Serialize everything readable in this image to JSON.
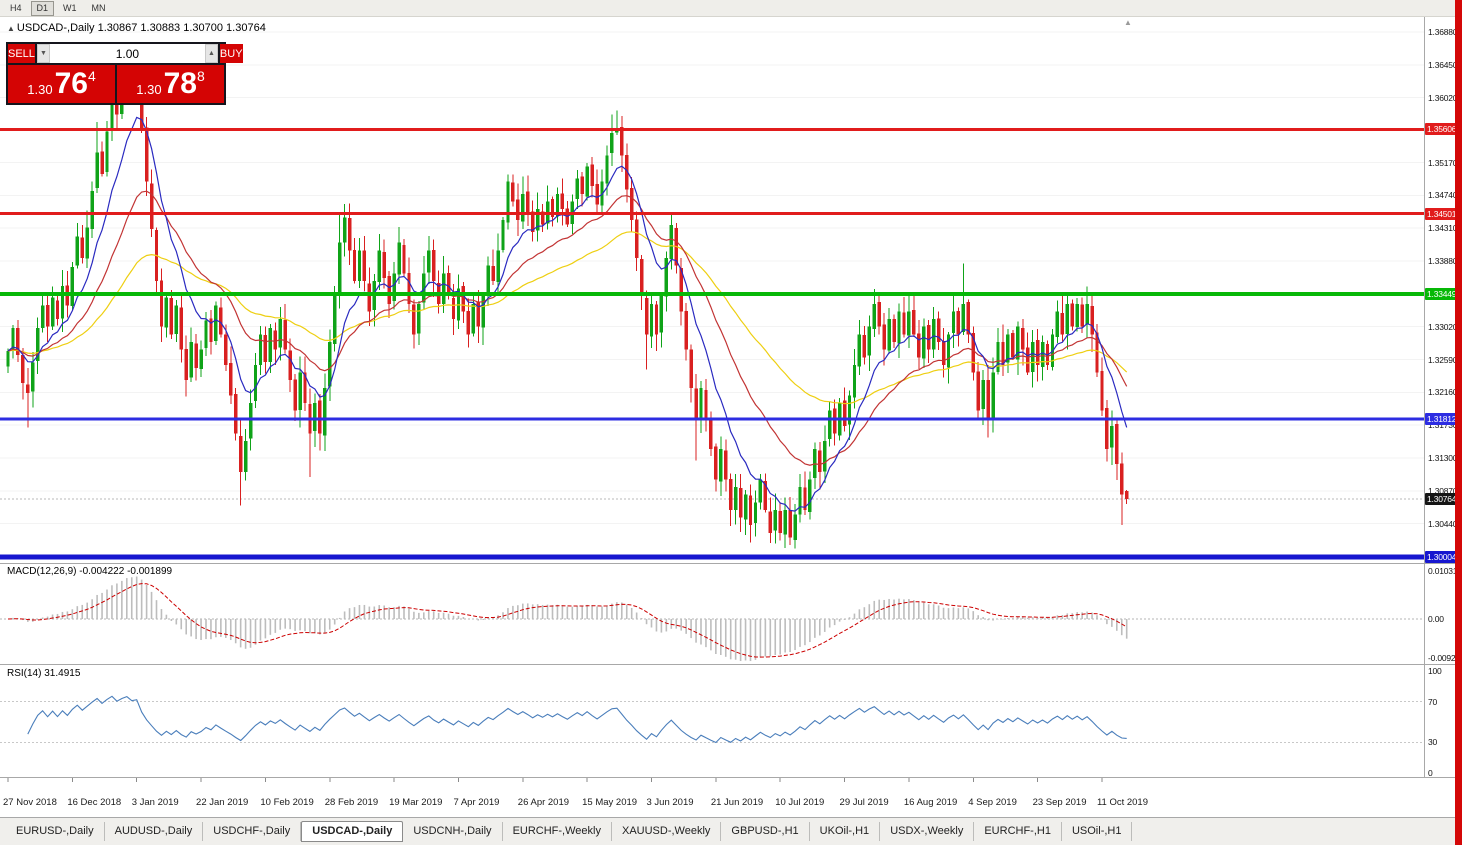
{
  "toolbar": {
    "timeframes": [
      "H4",
      "D1",
      "W1",
      "MN"
    ],
    "active": "D1"
  },
  "chart_header": {
    "marker": "▲",
    "title": "USDCAD-,Daily  1.30867 1.30883 1.30700 1.30764"
  },
  "icons": {
    "scroll_marker": "▲",
    "spin_down": "▼",
    "spin_up": "▲"
  },
  "trade_panel": {
    "sell_label": "SELL",
    "buy_label": "BUY",
    "volume": "1.00",
    "sell_price": {
      "prefix": "1.30",
      "big": "76",
      "sup": "4"
    },
    "buy_price": {
      "prefix": "1.30",
      "big": "78",
      "sup": "8"
    }
  },
  "price_scale": {
    "ticks": [
      "1.36880",
      "1.36450",
      "1.36020",
      "1.35170",
      "1.34740",
      "1.34310",
      "1.33880",
      "1.33020",
      "1.32590",
      "1.32160",
      "1.31730",
      "1.31300",
      "1.30870",
      "1.30440"
    ]
  },
  "macd_panel": {
    "label": "MACD(12,26,9) -0.004222 -0.001899",
    "scale_max": "0.010311",
    "scale_mid": "0.00",
    "scale_min": "-0.009203"
  },
  "rsi_panel": {
    "label": "RSI(14) 31.4915",
    "ticks": [
      "100",
      "70",
      "30",
      "0"
    ]
  },
  "x_axis": {
    "dates": [
      "27 Nov 2018",
      "16 Dec 2018",
      "3 Jan 2019",
      "22 Jan 2019",
      "10 Feb 2019",
      "28 Feb 2019",
      "19 Mar 2019",
      "7 Apr 2019",
      "26 Apr 2019",
      "15 May 2019",
      "3 Jun 2019",
      "21 Jun 2019",
      "10 Jul 2019",
      "29 Jul 2019",
      "16 Aug 2019",
      "4 Sep 2019",
      "23 Sep 2019",
      "11 Oct 2019"
    ]
  },
  "tabs": {
    "items": [
      "EURUSD-,Daily",
      "AUDUSD-,Daily",
      "USDCHF-,Daily",
      "USDCAD-,Daily",
      "USDCNH-,Daily",
      "EURCHF-,Weekly",
      "XAUUSD-,Weekly",
      "GBPUSD-,H1",
      "UKOil-,H1",
      "USDX-,Weekly",
      "EURCHF-,H1",
      "USOil-,H1"
    ],
    "active": "USDCAD-,Daily"
  },
  "chart_data": {
    "type": "candlestick",
    "symbol": "USDCAD",
    "timeframe": "Daily",
    "title": "USDCAD-,Daily",
    "y_axis": {
      "min": 1.2975,
      "max": 1.371
    },
    "last_ohlc": {
      "open": 1.30867,
      "high": 1.30883,
      "low": 1.307,
      "close": 1.30764
    },
    "first_open": 1.3252,
    "closes": [
      1.327,
      1.33,
      1.3265,
      1.3228,
      1.3215,
      1.3255,
      1.33,
      1.333,
      1.3302,
      1.334,
      1.3312,
      1.3355,
      1.333,
      1.338,
      1.342,
      1.3392,
      1.3432,
      1.348,
      1.353,
      1.3502,
      1.3558,
      1.361,
      1.358,
      1.3622,
      1.3655,
      1.363,
      1.3645,
      1.356,
      1.3492,
      1.343,
      1.3362,
      1.3302,
      1.334,
      1.3292,
      1.333,
      1.3272,
      1.3232,
      1.3282,
      1.3248,
      1.3272,
      1.331,
      1.3282,
      1.333,
      1.3292,
      1.3252,
      1.3212,
      1.3162,
      1.3112,
      1.3152,
      1.3202,
      1.3252,
      1.3292,
      1.3256,
      1.33,
      1.3272,
      1.3312,
      1.3272,
      1.3232,
      1.3192,
      1.3242,
      1.3202,
      1.3162,
      1.3202,
      1.3162,
      1.3222,
      1.3282,
      1.3342,
      1.3412,
      1.3445,
      1.3402,
      1.3362,
      1.3402,
      1.3362,
      1.3322,
      1.3362,
      1.3402,
      1.3366,
      1.3332,
      1.3372,
      1.3412,
      1.3372,
      1.3332,
      1.3292,
      1.3332,
      1.3372,
      1.3402,
      1.3362,
      1.3332,
      1.3372,
      1.3342,
      1.3312,
      1.3352,
      1.3322,
      1.3292,
      1.3332,
      1.3302,
      1.3342,
      1.3382,
      1.3362,
      1.3402,
      1.3442,
      1.3492,
      1.3466,
      1.3442,
      1.3476,
      1.3452,
      1.3426,
      1.3456,
      1.3436,
      1.3466,
      1.3446,
      1.3476,
      1.3456,
      1.3436,
      1.3466,
      1.3496,
      1.3476,
      1.3512,
      1.3486,
      1.3462,
      1.3492,
      1.3526,
      1.3556,
      1.3562,
      1.3526,
      1.3482,
      1.3442,
      1.3392,
      1.3342,
      1.3292,
      1.3332,
      1.3292,
      1.3342,
      1.3392,
      1.3435,
      1.3382,
      1.3322,
      1.3272,
      1.3222,
      1.3182,
      1.3222,
      1.3182,
      1.3142,
      1.3102,
      1.3142,
      1.3102,
      1.3062,
      1.3092,
      1.3052,
      1.3082,
      1.3042,
      1.3072,
      1.3102,
      1.3062,
      1.3032,
      1.3062,
      1.3032,
      1.3062,
      1.3026,
      1.3056,
      1.3092,
      1.3062,
      1.3102,
      1.3142,
      1.3112,
      1.3152,
      1.3192,
      1.3162,
      1.3202,
      1.3172,
      1.3212,
      1.3252,
      1.3292,
      1.3262,
      1.3302,
      1.3332,
      1.3302,
      1.3272,
      1.3312,
      1.3282,
      1.3322,
      1.3292,
      1.3322,
      1.3292,
      1.3262,
      1.3302,
      1.3272,
      1.3312,
      1.3282,
      1.3252,
      1.3292,
      1.3322,
      1.3292,
      1.3332,
      1.3292,
      1.3242,
      1.3192,
      1.3232,
      1.3182,
      1.3242,
      1.3282,
      1.3252,
      1.3292,
      1.3262,
      1.3302,
      1.3272,
      1.3242,
      1.3282,
      1.3252,
      1.3282,
      1.3252,
      1.3292,
      1.3322,
      1.3292,
      1.3332,
      1.3302,
      1.3332,
      1.3302,
      1.3332,
      1.3292,
      1.3242,
      1.3192,
      1.3142,
      1.3172,
      1.3122,
      1.3082,
      1.30764
    ],
    "overrides": {
      "4": {
        "l": 1.317
      },
      "18": {
        "h": 1.357
      },
      "24": {
        "h": 1.3663
      },
      "26": {
        "h": 1.3661
      },
      "47": {
        "l": 1.3068
      },
      "61": {
        "l": 1.3105
      },
      "67": {
        "h": 1.3448
      },
      "122": {
        "h": 1.358
      },
      "123": {
        "h": 1.3585
      },
      "129": {
        "l": 1.3246
      },
      "139": {
        "l": 1.3127
      },
      "154": {
        "l": 1.3019
      },
      "158": {
        "l": 1.3016
      },
      "193": {
        "h": 1.3385
      },
      "198": {
        "l": 1.3157
      },
      "214": {
        "h": 1.3347
      },
      "225": {
        "l": 1.3042
      },
      "226": {
        "o": 1.30867,
        "h": 1.30883,
        "l": 1.307
      }
    },
    "levels": [
      {
        "label": "1.35606",
        "price": 1.35606,
        "color": "#e11c1c",
        "width": 3
      },
      {
        "label": "1.34501",
        "price": 1.34501,
        "color": "#e11c1c",
        "width": 3
      },
      {
        "label": "1.33449",
        "price": 1.33449,
        "color": "#07b807",
        "width": 4
      },
      {
        "label": "1.31812",
        "price": 1.31812,
        "color": "#2d2de2",
        "width": 3
      },
      {
        "label": "1.30004",
        "price": 1.30004,
        "color": "#1717cf",
        "width": 5
      }
    ],
    "current_price": {
      "label": "1.30764",
      "price": 1.30764,
      "bg": "#151515"
    },
    "moving_averages": [
      {
        "name": "slow",
        "period": 55,
        "color": "#eecf12"
      },
      {
        "name": "medium",
        "period": 25,
        "color": "#c23434"
      },
      {
        "name": "fast",
        "period": 10,
        "color": "#2a2ac0"
      }
    ],
    "indicators": {
      "macd": {
        "name": "MACD",
        "fast": 12,
        "slow": 26,
        "signal": 9,
        "value": -0.004222,
        "signal_value": -0.001899,
        "scale_max": 0.010311,
        "scale_min": -0.009203
      },
      "rsi": {
        "name": "RSI",
        "period": 14,
        "value": 31.4915,
        "levels": [
          70,
          30
        ]
      }
    },
    "colors": {
      "up": "#0fa318",
      "down": "#d92020",
      "macd_hist": "#bdbdbd",
      "macd_signal": "#cc0000",
      "rsi": "#4a7ebb",
      "grid": "#f3f3f3"
    }
  }
}
